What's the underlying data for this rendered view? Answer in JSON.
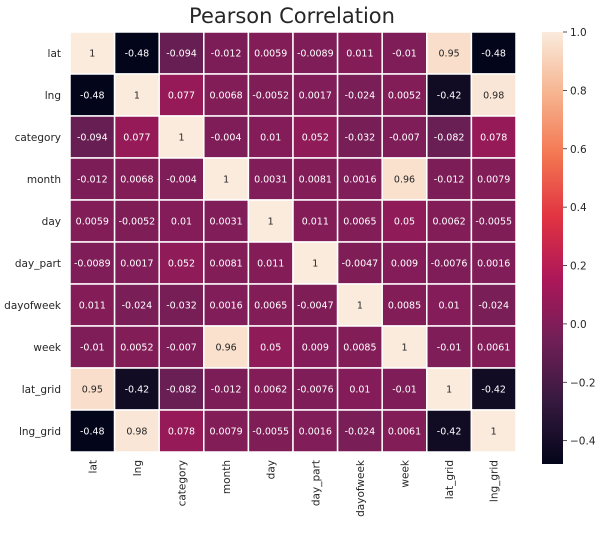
{
  "chart_data": {
    "type": "heatmap",
    "title": "Pearson Correlation",
    "rows": [
      "lat",
      "lng",
      "category",
      "month",
      "day",
      "day_part",
      "dayofweek",
      "week",
      "lat_grid",
      "lng_grid"
    ],
    "columns": [
      "lat",
      "lng",
      "category",
      "month",
      "day",
      "day_part",
      "dayofweek",
      "week",
      "lat_grid",
      "lng_grid"
    ],
    "values": [
      [
        1,
        -0.48,
        -0.094,
        -0.012,
        0.0059,
        -0.0089,
        0.011,
        -0.01,
        0.95,
        -0.48
      ],
      [
        -0.48,
        1,
        0.077,
        0.0068,
        -0.0052,
        0.0017,
        -0.024,
        0.0052,
        -0.42,
        0.98
      ],
      [
        -0.094,
        0.077,
        1,
        -0.004,
        0.01,
        0.052,
        -0.032,
        -0.007,
        -0.082,
        0.078
      ],
      [
        -0.012,
        0.0068,
        -0.004,
        1,
        0.0031,
        0.0081,
        0.0016,
        0.96,
        -0.012,
        0.0079
      ],
      [
        0.0059,
        -0.0052,
        0.01,
        0.0031,
        1,
        0.011,
        0.0065,
        0.05,
        0.0062,
        -0.0055
      ],
      [
        -0.0089,
        0.0017,
        0.052,
        0.0081,
        0.011,
        1,
        -0.0047,
        0.009,
        -0.0076,
        0.0016
      ],
      [
        0.011,
        -0.024,
        -0.032,
        0.0016,
        0.0065,
        -0.0047,
        1,
        0.0085,
        0.01,
        -0.024
      ],
      [
        -0.01,
        0.0052,
        -0.007,
        0.96,
        0.05,
        0.009,
        0.0085,
        1,
        -0.01,
        0.0061
      ],
      [
        0.95,
        -0.42,
        -0.082,
        -0.012,
        0.0062,
        -0.0076,
        0.01,
        -0.01,
        1,
        -0.42
      ],
      [
        -0.48,
        0.98,
        0.078,
        0.0079,
        -0.0055,
        0.0016,
        -0.024,
        0.0061,
        -0.42,
        1
      ]
    ],
    "colorbar": {
      "min": -0.48,
      "max": 1.0,
      "ticks": [
        1.0,
        0.8,
        0.6,
        0.4,
        0.2,
        0.0,
        -0.2,
        -0.4
      ],
      "tick_labels": [
        "1.0",
        "0.8",
        "0.6",
        "0.4",
        "0.2",
        "0.0",
        "−0.2",
        "−0.4"
      ],
      "colormap": "rocket",
      "stops": [
        "#03051a",
        "#35193e",
        "#701f57",
        "#ad1759",
        "#e13342",
        "#f37651",
        "#f6b48f",
        "#faebdd"
      ]
    },
    "cell_border_color": "#ffffff"
  }
}
